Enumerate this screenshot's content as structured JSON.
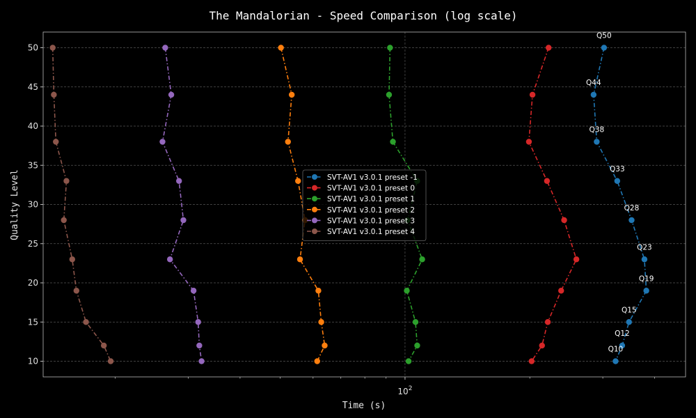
{
  "chart_data": {
    "type": "line",
    "title": "The Mandalorian - Speed Comparison (log scale)",
    "xlabel": "Time (s)",
    "ylabel": "Quality Level",
    "x_scale": "log",
    "xlim": [
      13.4,
      475
    ],
    "ylim": [
      8,
      52
    ],
    "y_ticks": [
      10,
      15,
      20,
      25,
      30,
      35,
      40,
      45,
      50
    ],
    "x_major_ticks": [
      {
        "value": 100,
        "base": "10",
        "exp": "2"
      }
    ],
    "x_minor_ticks": [
      20,
      30,
      40,
      50,
      60,
      70,
      80,
      90,
      200,
      300,
      400
    ],
    "grid": true,
    "legend_position": "center",
    "quality_levels": [
      50,
      44,
      38,
      33,
      28,
      23,
      19,
      15,
      12,
      10
    ],
    "series": [
      {
        "name": "SVT-AV1 v3.0.1 preset -1",
        "color": "#1f77b4",
        "times": [
          302,
          285,
          290,
          325,
          352,
          378,
          382,
          347,
          334,
          322
        ]
      },
      {
        "name": "SVT-AV1 v3.0.1 preset 0",
        "color": "#d62728",
        "times": [
          222,
          203,
          199,
          220,
          242,
          259,
          238,
          221,
          214,
          202
        ]
      },
      {
        "name": "SVT-AV1 v3.0.1 preset 1",
        "color": "#2ca02c",
        "times": [
          92,
          91.5,
          93.5,
          107,
          101.5,
          110,
          101,
          106,
          107,
          102
        ]
      },
      {
        "name": "SVT-AV1 v3.0.1 preset 2",
        "color": "#ff7f0e",
        "times": [
          50.2,
          53.3,
          52.2,
          55.2,
          57.4,
          55.8,
          61.8,
          62.8,
          64.0,
          61.4
        ]
      },
      {
        "name": "SVT-AV1 v3.0.1 preset 3",
        "color": "#9467bd",
        "times": [
          26.4,
          27.3,
          26.0,
          28.5,
          29.2,
          27.1,
          30.9,
          31.7,
          31.9,
          32.3
        ]
      },
      {
        "name": "SVT-AV1 v3.0.1 preset 4",
        "color": "#8c564b",
        "times": [
          14.13,
          14.22,
          14.38,
          15.25,
          15.03,
          15.75,
          16.12,
          17.0,
          18.77,
          19.5
        ]
      }
    ],
    "annotations": {
      "series_index": 0,
      "labels": [
        "Q50",
        "Q44",
        "Q38",
        "Q33",
        "Q28",
        "Q23",
        "Q19",
        "Q15",
        "Q12",
        "Q10"
      ]
    }
  }
}
